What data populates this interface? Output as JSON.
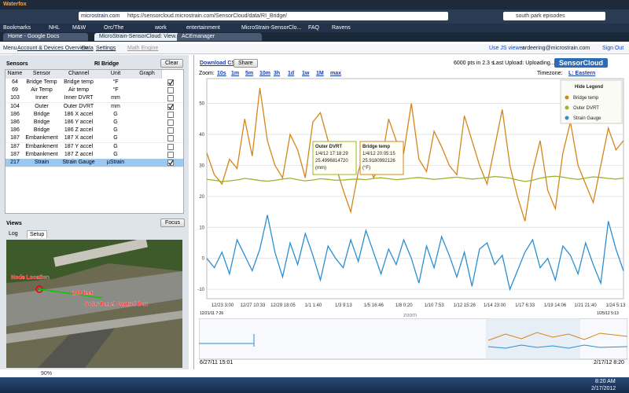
{
  "browser": {
    "title": "Waterfox",
    "site": "microstrain.com",
    "url": "https://sensorcloud.microstrain.com/SensorCloud/data/RI_Bridge/",
    "search": "south park episodes",
    "bookmarks": [
      "Bookmarks",
      "NHL",
      "M&W",
      "Orc/The",
      "work",
      "entertainment",
      "MicroStrain-SensorClo...",
      "FAQ",
      "Ravens"
    ],
    "tabs": [
      "Home - Google Docs",
      "MicroStrain-SensorCloud: View...",
      "ACEmanager"
    ]
  },
  "app_menu": {
    "items": [
      "Menu",
      "Account & Devices Overview",
      "Data",
      "Settings",
      "Math Engine"
    ],
    "right": [
      "Use JS viewer",
      "ardeering@microstrain.com",
      "Sign Out"
    ]
  },
  "sensors": {
    "title": "Sensors",
    "device": "RI Bridge",
    "clear": "Clear",
    "columns": [
      "Name",
      "Sensor",
      "Channel",
      "Unit",
      "Graph"
    ],
    "rows": [
      [
        "64",
        "Bridge Temp",
        "Bridge temp",
        "°F",
        true
      ],
      [
        "69",
        "Air Temp",
        "Air temp",
        "°F",
        false
      ],
      [
        "103",
        "Inner",
        "Inner DVRT",
        "mm",
        false
      ],
      [
        "104",
        "Outer",
        "Outer DVRT",
        "mm",
        true
      ],
      [
        "186",
        "Bridge",
        "186 X accel",
        "G",
        false
      ],
      [
        "186",
        "Bridge",
        "186 Y accel",
        "G",
        false
      ],
      [
        "186",
        "Bridge",
        "186 Z accel",
        "G",
        false
      ],
      [
        "187",
        "Embankment",
        "187 X accel",
        "G",
        false
      ],
      [
        "187",
        "Embankment",
        "187 Y accel",
        "G",
        false
      ],
      [
        "187",
        "Embankment",
        "187 Z accel",
        "G",
        false
      ],
      [
        "217",
        "Strain",
        "Strain Gauge",
        "µStrain",
        true
      ]
    ],
    "selected_row": 10
  },
  "views": {
    "title": "Views",
    "focus": "Focus",
    "tabs": [
      "Log",
      "Setup"
    ],
    "labels": [
      "Node Location",
      "140 feet",
      "Solar Panel Control Box"
    ]
  },
  "toolbar": {
    "download": "Download CSV",
    "share": "Share",
    "stats": "6000 pts in 2.3 s",
    "upload": "Last Upload: Uploading...",
    "logo": "SensorCloud",
    "zoom_label": "Zoom:",
    "zoom": [
      "10s",
      "1m",
      "5m",
      "10m",
      "3h",
      "1d",
      "1w",
      "1M",
      "max"
    ],
    "timezone_label": "Timezone:",
    "timezone": "L: Eastern"
  },
  "chart_data": {
    "type": "line",
    "ylim": [
      -13,
      58
    ],
    "yticks": [
      50,
      40,
      30,
      20,
      10,
      0,
      -10
    ],
    "x_tick_labels": [
      "12/23 3:00",
      "12/27 10:33",
      "12/29 18:05",
      "1/1 1:40",
      "1/3 9:13",
      "1/5 16:46",
      "1/8 0:20",
      "1/10 7:53",
      "1/12 15:26",
      "1/14 23:00",
      "1/17 6:33",
      "1/19 14:06",
      "1/21 21:40",
      "1/24 5:13"
    ],
    "legend_toggle": "Hide Legend",
    "legend_position": "upper right",
    "series": [
      {
        "name": "Bridge temp",
        "color": "#d4861a",
        "values": [
          34,
          27,
          24,
          32,
          29,
          45,
          33,
          55,
          38,
          30,
          26,
          40,
          35,
          26,
          44,
          47,
          38,
          30,
          22,
          15,
          28,
          36,
          26,
          30,
          45,
          38,
          34,
          50,
          32,
          28,
          41,
          36,
          30,
          27,
          46,
          38,
          30,
          24,
          36,
          48,
          30,
          20,
          12,
          28,
          38,
          22,
          16,
          34,
          44,
          30,
          24,
          18,
          30,
          42,
          35,
          38
        ]
      },
      {
        "name": "Outer DVRT",
        "color": "#9cb52a",
        "values": [
          25.5,
          25.2,
          24.8,
          25,
          25.3,
          25.8,
          25.5,
          25.1,
          24.9,
          25.2,
          25.6,
          25.9,
          25.4,
          25,
          25.3,
          25.7,
          25.5,
          25.2,
          25.3,
          25.5,
          25.6,
          25.4,
          25.8,
          26,
          25.7,
          25.4,
          25.6,
          25.9,
          26.1,
          25.8,
          25.5,
          25.7,
          26,
          26.2,
          25.9,
          25.6,
          25.8,
          26.1,
          26.4,
          26.2,
          25.9,
          25.3,
          24.8,
          25.2,
          25.9,
          26.3,
          26.5,
          26.2,
          25.8,
          25.5,
          25.9,
          26.3,
          26.1,
          25.8,
          25.6,
          25.9
        ]
      },
      {
        "name": "Strain Gauge",
        "color": "#2b8fd0",
        "values": [
          0,
          -3,
          2,
          -5,
          6,
          1,
          -4,
          3,
          14,
          2,
          -6,
          5,
          -2,
          8,
          1,
          -7,
          4,
          0,
          -3,
          6,
          -1,
          9,
          2,
          -5,
          3,
          -2,
          6,
          0,
          -8,
          4,
          -3,
          7,
          1,
          -6,
          2,
          -9,
          3,
          5,
          -2,
          1,
          -10,
          -4,
          2,
          6,
          -3,
          0,
          -7,
          4,
          1,
          -5,
          5,
          -2,
          -8,
          12,
          3,
          -4
        ]
      }
    ],
    "tooltips": [
      [
        "Outer DVRT",
        "1/4/12 17:18:29",
        "25.4996814720",
        "(mm)"
      ],
      [
        "Bridge temp",
        "1/4/12 20:05:15",
        "25.9180992126",
        "(°F)"
      ]
    ],
    "navigator": {
      "zoom": "zoom",
      "range_start": "12/21/11 7:26",
      "range_end": "1/25/12 5:13",
      "start": "6/27/11 15:01",
      "end": "2/17/12 8:20"
    }
  },
  "taskbar": {
    "time": "8:20 AM",
    "date": "2/17/2012",
    "zoom": "90%"
  }
}
